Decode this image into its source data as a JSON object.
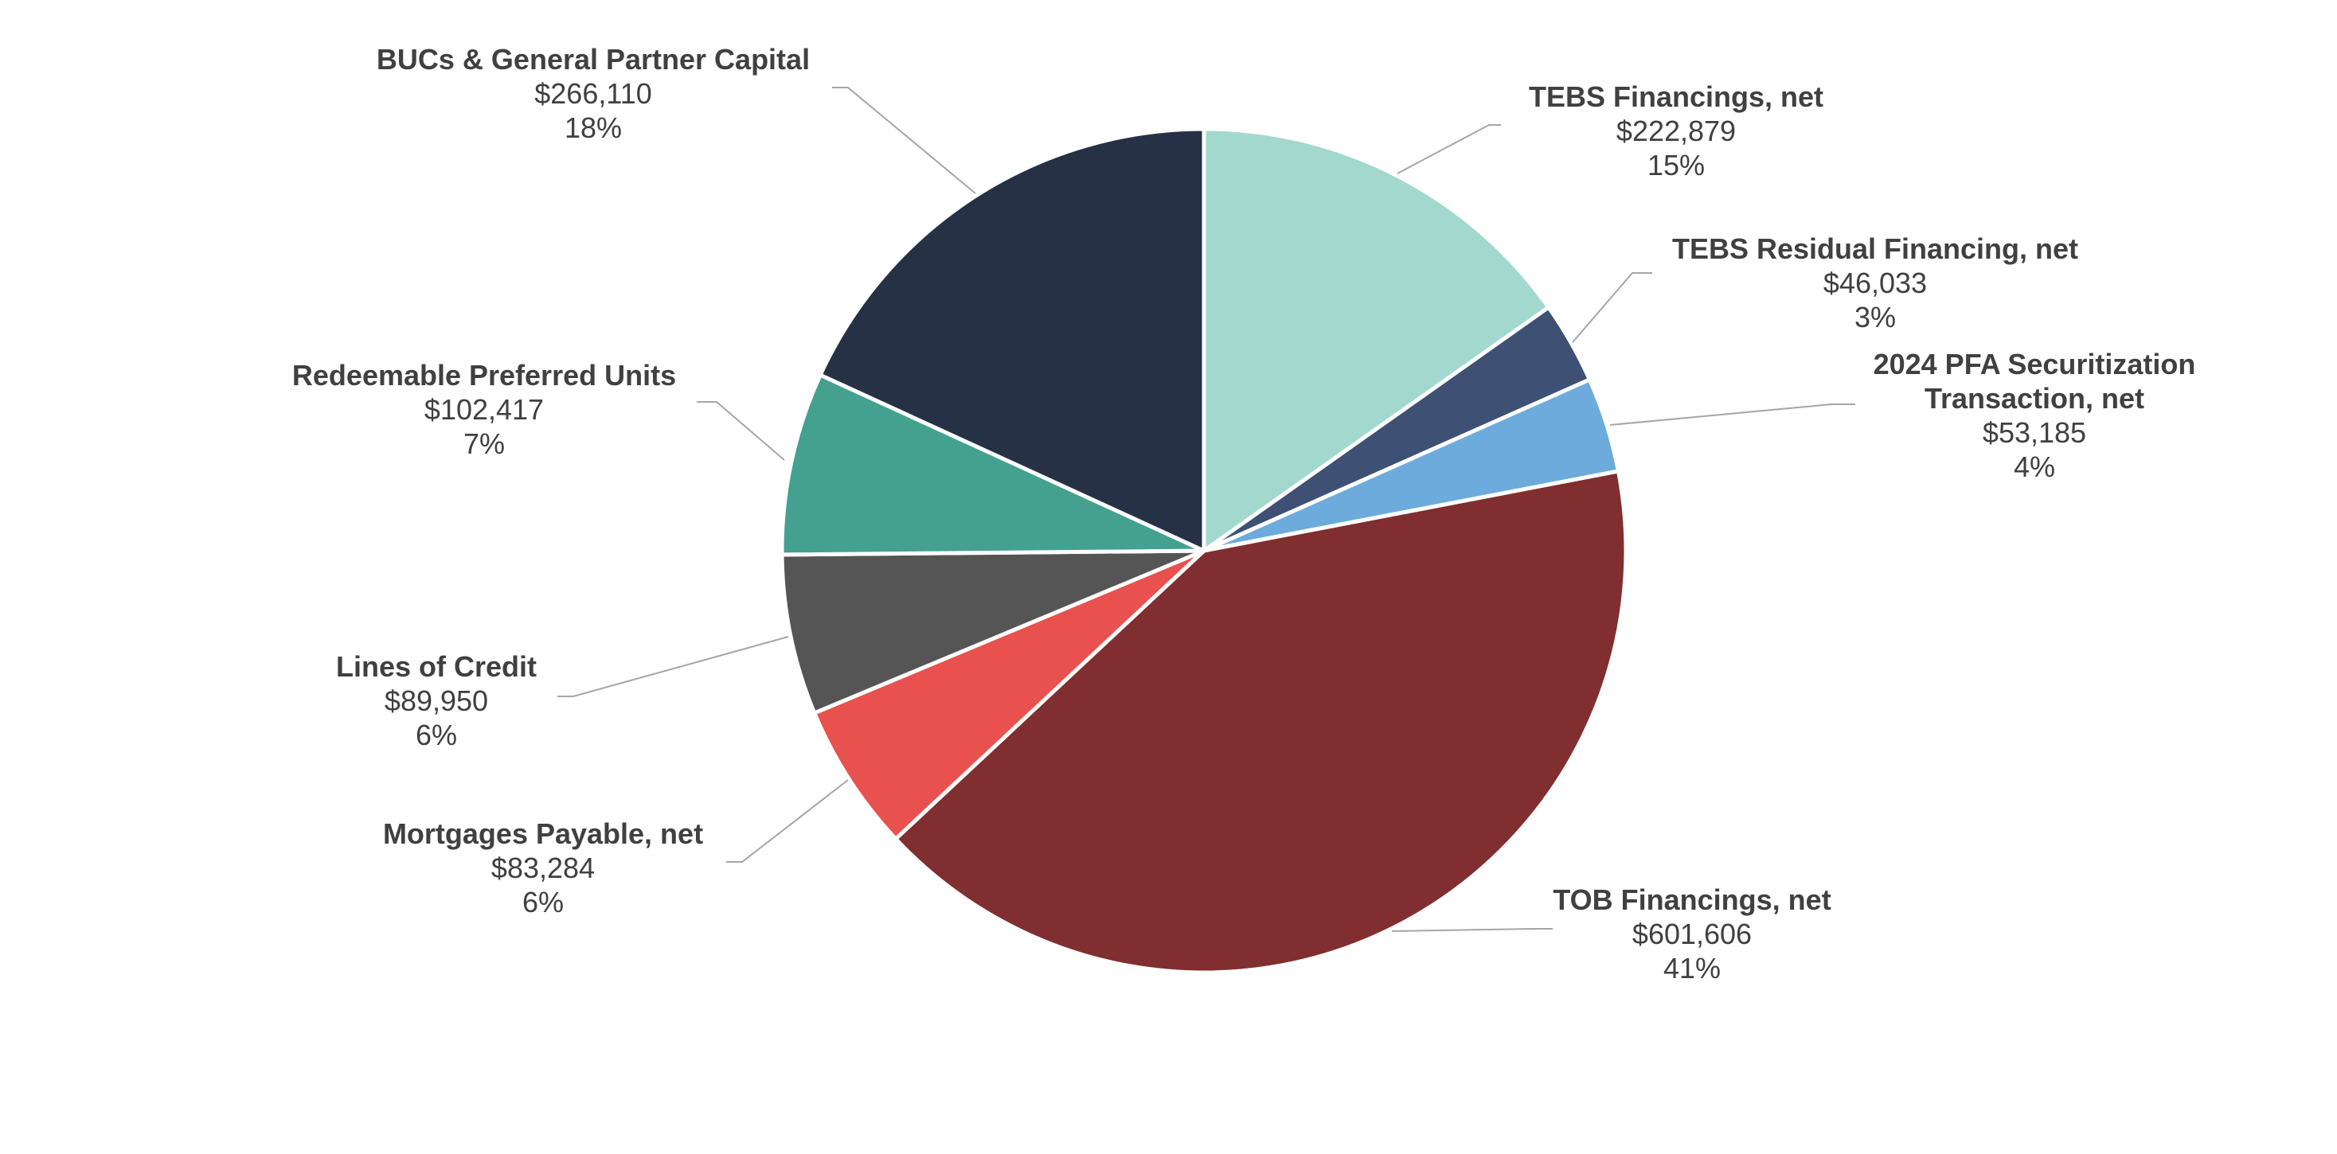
{
  "chart_data": {
    "type": "pie",
    "slices": [
      {
        "name": "TEBS Financings, net",
        "value_label": "$222,879",
        "pct_label": "15%",
        "value": 222879,
        "color": "#a3d8cf"
      },
      {
        "name": "TEBS Residual Financing, net",
        "value_label": "$46,033",
        "pct_label": "3%",
        "value": 46033,
        "color": "#3e5073"
      },
      {
        "name": "2024 PFA Securitization Transaction, net",
        "name_lines": [
          "2024 PFA Securitization",
          "Transaction, net"
        ],
        "value_label": "$53,185",
        "pct_label": "4%",
        "value": 53185,
        "color": "#6dabdd"
      },
      {
        "name": "TOB Financings, net",
        "value_label": "$601,606",
        "pct_label": "41%",
        "value": 601606,
        "color": "#802e30"
      },
      {
        "name": "Mortgages Payable, net",
        "value_label": "$83,284",
        "pct_label": "6%",
        "value": 83284,
        "color": "#e8514d"
      },
      {
        "name": "Lines of Credit",
        "value_label": "$89,950",
        "pct_label": "6%",
        "value": 89950,
        "color": "#555555"
      },
      {
        "name": "Redeemable Preferred Units",
        "value_label": "$102,417",
        "pct_label": "7%",
        "value": 102417,
        "color": "#44a08f"
      },
      {
        "name": "BUCs & General Partner Capital",
        "value_label": "$266,110",
        "pct_label": "18%",
        "value": 266110,
        "color": "#263145"
      }
    ]
  }
}
